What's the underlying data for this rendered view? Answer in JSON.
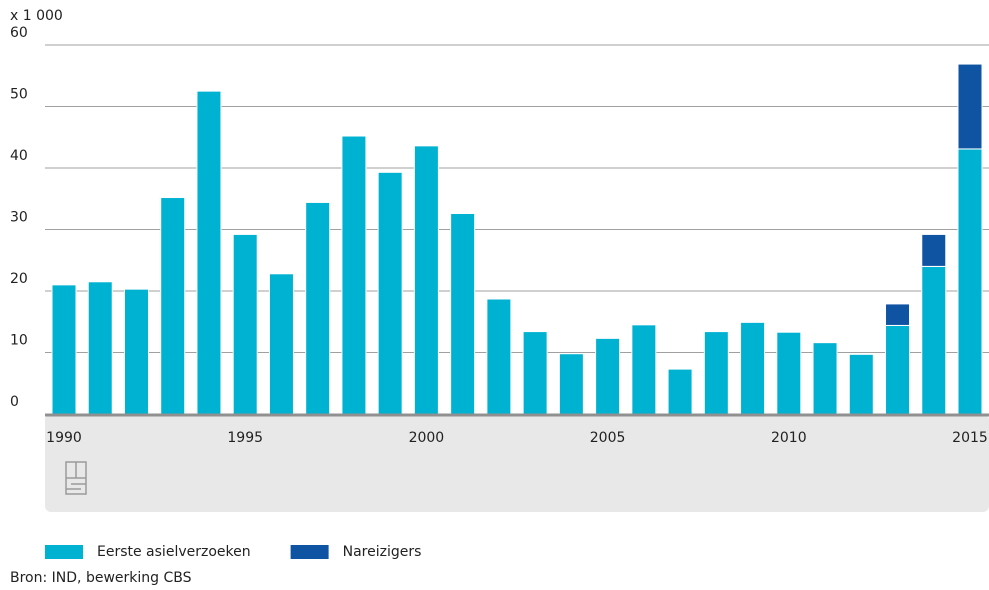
{
  "chart_data": {
    "type": "stacked-bar",
    "unit_label": "x 1 000",
    "categories": [
      "1990",
      null,
      null,
      null,
      null,
      "1995",
      null,
      null,
      null,
      null,
      "2000",
      null,
      null,
      null,
      null,
      "2005",
      null,
      null,
      null,
      null,
      "2010",
      null,
      null,
      null,
      null,
      "2015"
    ],
    "series": [
      {
        "name": "Eerste asielverzoeken",
        "color": "#00b2d2",
        "values": [
          21.0,
          21.5,
          20.3,
          35.2,
          52.5,
          29.2,
          22.8,
          34.4,
          45.2,
          39.3,
          43.6,
          32.6,
          18.7,
          13.4,
          9.8,
          12.3,
          14.5,
          7.3,
          13.4,
          14.9,
          13.3,
          11.6,
          9.7,
          14.4,
          24.0,
          43.1
        ]
      },
      {
        "name": "Nareizigers",
        "color": "#0f53a3",
        "values": [
          null,
          null,
          null,
          null,
          null,
          null,
          null,
          null,
          null,
          null,
          null,
          null,
          null,
          null,
          null,
          null,
          null,
          null,
          null,
          null,
          null,
          null,
          null,
          3.5,
          5.2,
          13.8
        ]
      }
    ],
    "ylim": [
      0,
      60
    ],
    "yticks": [
      0,
      10,
      20,
      30,
      40,
      50,
      60
    ],
    "grid": true,
    "source": "Bron: IND, bewerking CBS"
  }
}
